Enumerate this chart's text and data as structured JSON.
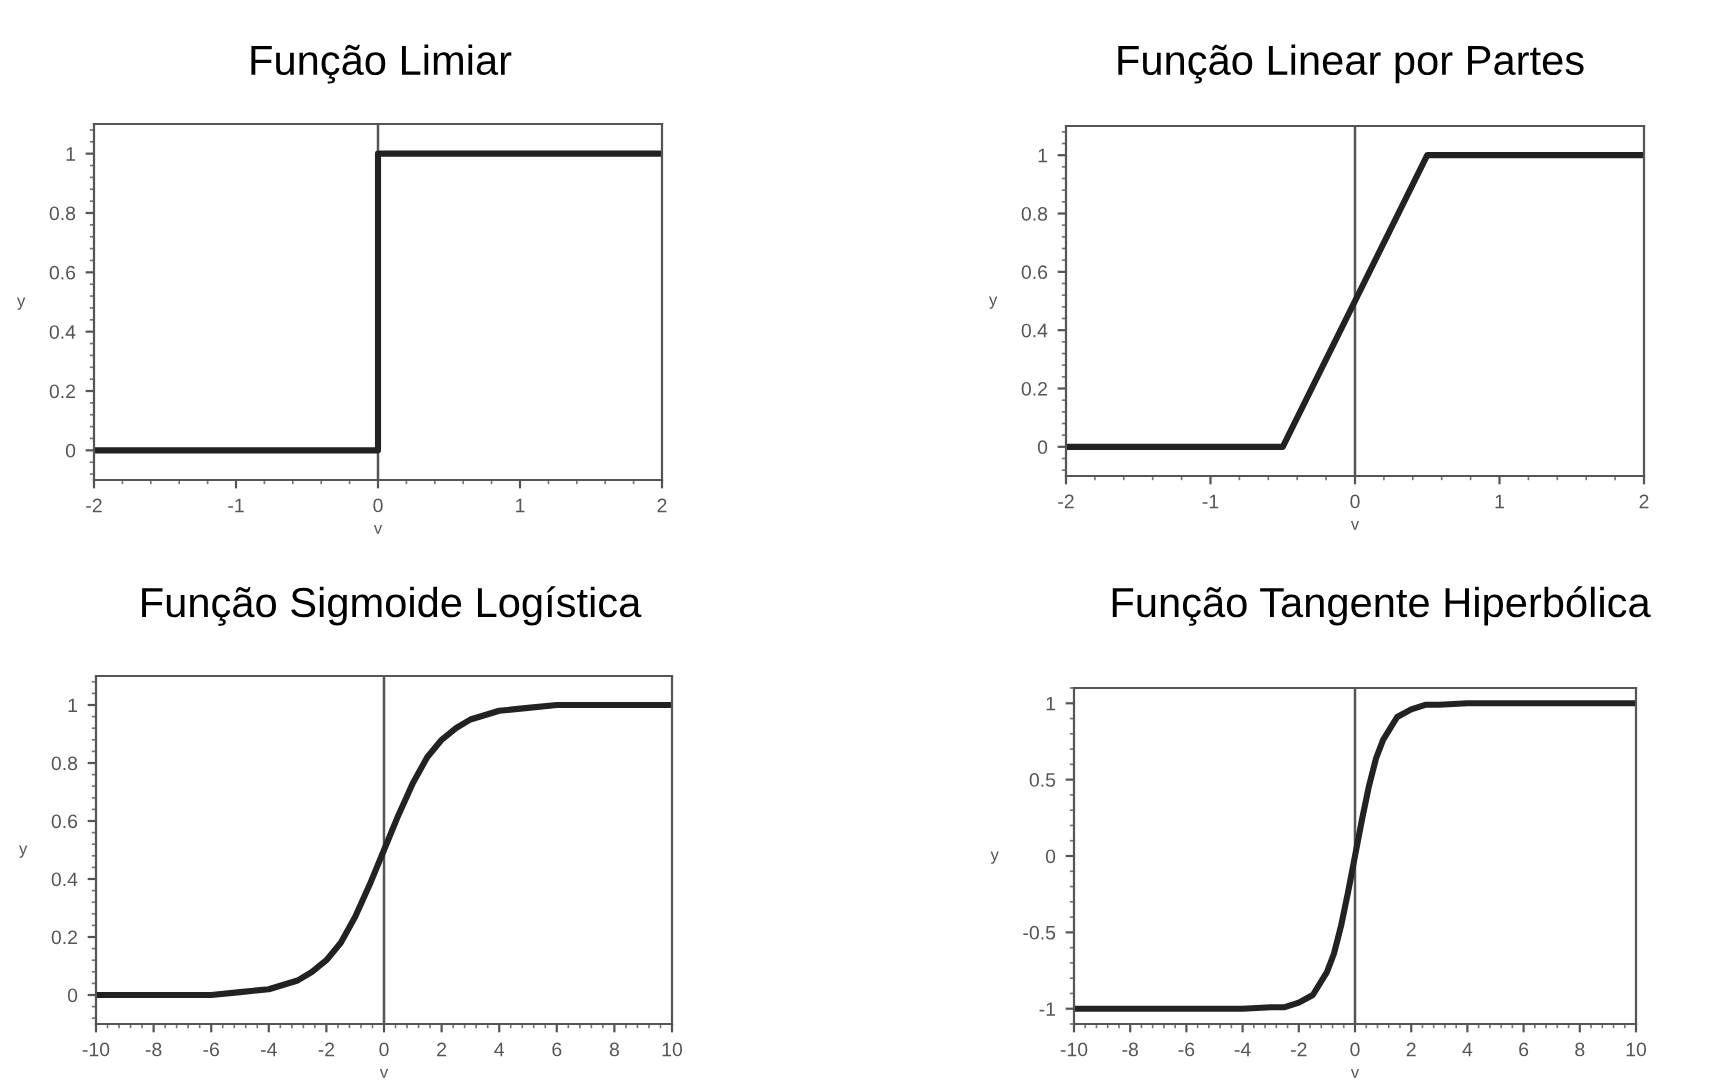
{
  "chart_data": [
    {
      "type": "line",
      "title": "Função Limiar",
      "xlabel": "v",
      "ylabel": "y",
      "xlim": [
        -2,
        2
      ],
      "ylim": [
        -0.1,
        1.1
      ],
      "xticks": [
        -2,
        -1,
        0,
        1,
        2
      ],
      "yticks": [
        0,
        0.2,
        0.4,
        0.6,
        0.8,
        1
      ],
      "grid": false,
      "ref_lines": [
        {
          "axis": "x",
          "value": 0,
          "color": "#555555"
        }
      ],
      "series": [
        {
          "color": "#222222",
          "x": [
            -2,
            0,
            0,
            2
          ],
          "values": [
            0,
            0,
            1,
            1
          ]
        }
      ]
    },
    {
      "type": "line",
      "title": "Função Linear por Partes",
      "xlabel": "v",
      "ylabel": "y",
      "xlim": [
        -2,
        2
      ],
      "ylim": [
        -0.1,
        1.1
      ],
      "xticks": [
        -2,
        -1,
        0,
        1,
        2
      ],
      "yticks": [
        0,
        0.2,
        0.4,
        0.6,
        0.8,
        1
      ],
      "grid": false,
      "ref_lines": [
        {
          "axis": "x",
          "value": 0,
          "color": "#555555"
        }
      ],
      "series": [
        {
          "color": "#222222",
          "x": [
            -2,
            -0.5,
            0.5,
            2
          ],
          "values": [
            0,
            0,
            1,
            1
          ]
        }
      ]
    },
    {
      "type": "line",
      "title": "Função Sigmoide Logística",
      "xlabel": "v",
      "ylabel": "y",
      "xlim": [
        -10,
        10
      ],
      "ylim": [
        -0.1,
        1.1
      ],
      "xticks": [
        -10,
        -8,
        -6,
        -4,
        -2,
        0,
        2,
        4,
        6,
        8,
        10
      ],
      "yticks": [
        0,
        0.2,
        0.4,
        0.6,
        0.8,
        1
      ],
      "grid": false,
      "ref_lines": [
        {
          "axis": "x",
          "value": 0,
          "color": "#555555"
        }
      ],
      "series": [
        {
          "color": "#222222",
          "x": [
            -10,
            -8,
            -6,
            -5,
            -4,
            -3,
            -2.5,
            -2,
            -1.5,
            -1,
            -0.5,
            0,
            0.5,
            1,
            1.5,
            2,
            2.5,
            3,
            4,
            5,
            6,
            8,
            10
          ],
          "values": [
            0,
            0,
            0,
            0.01,
            0.02,
            0.05,
            0.08,
            0.12,
            0.18,
            0.27,
            0.38,
            0.5,
            0.62,
            0.73,
            0.82,
            0.88,
            0.92,
            0.95,
            0.98,
            0.99,
            1,
            1,
            1
          ]
        }
      ]
    },
    {
      "type": "line",
      "title": "Função Tangente Hiperbólica",
      "xlabel": "v",
      "ylabel": "y",
      "xlim": [
        -10,
        10
      ],
      "ylim": [
        -1.1,
        1.1
      ],
      "xticks": [
        -10,
        -8,
        -6,
        -4,
        -2,
        0,
        2,
        4,
        6,
        8,
        10
      ],
      "yticks": [
        -1,
        -0.5,
        0,
        0.5,
        1
      ],
      "grid": false,
      "ref_lines": [
        {
          "axis": "x",
          "value": 0,
          "color": "#555555"
        }
      ],
      "series": [
        {
          "color": "#222222",
          "x": [
            -10,
            -6,
            -4,
            -3,
            -2.5,
            -2,
            -1.5,
            -1,
            -0.75,
            -0.5,
            -0.25,
            0,
            0.25,
            0.5,
            0.75,
            1,
            1.5,
            2,
            2.5,
            3,
            4,
            6,
            10
          ],
          "values": [
            -1,
            -1,
            -1,
            -0.99,
            -0.99,
            -0.96,
            -0.91,
            -0.76,
            -0.64,
            -0.46,
            -0.24,
            0,
            0.24,
            0.46,
            0.64,
            0.76,
            0.91,
            0.96,
            0.99,
            0.99,
            1,
            1,
            1
          ]
        }
      ]
    }
  ]
}
